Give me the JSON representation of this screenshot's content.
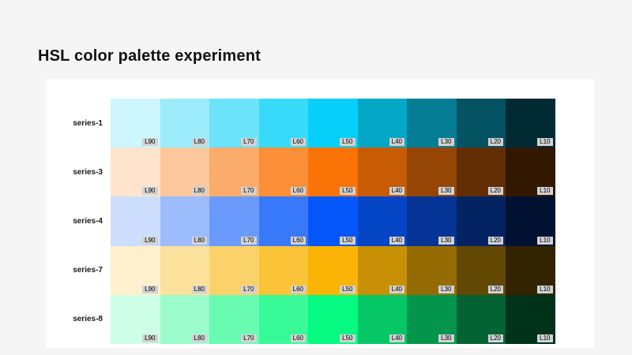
{
  "page": {
    "title": "HSL color palette experiment",
    "background": "#f5f5f5",
    "panel_background": "#ffffff",
    "label_chip_background": "#d2d2d2",
    "label_chip_text_color": "#000000"
  },
  "chart_data": {
    "type": "heatmap",
    "title": "HSL color palette experiment",
    "description": "Grid of color swatches: 5 hue series (rows) by 9 lightness steps (columns), each swatch tagged with its lightness label",
    "columns": [
      "L90",
      "L80",
      "L70",
      "L60",
      "L50",
      "L40",
      "L30",
      "L20",
      "L10"
    ],
    "lightness_percent": [
      90,
      80,
      70,
      60,
      50,
      40,
      30,
      20,
      10
    ],
    "saturation_percent": 95,
    "legend_position": "none",
    "grid": "off",
    "series": [
      {
        "name": "series-1",
        "hue": 190,
        "colors": [
          "#cdf6fe",
          "#9cecfc",
          "#6ae3fb",
          "#38dafa",
          "#06d0f9",
          "#05a7c7",
          "#047d95",
          "#035363",
          "#012a32"
        ]
      },
      {
        "name": "series-3",
        "hue": 27,
        "colors": [
          "#fee3cd",
          "#fcc79c",
          "#fbab6a",
          "#fa8f38",
          "#f97306",
          "#c75c05",
          "#954504",
          "#632e03",
          "#321701"
        ]
      },
      {
        "name": "series-4",
        "hue": 220,
        "colors": [
          "#cdddfe",
          "#9cbcfc",
          "#6a9afb",
          "#3879fa",
          "#0657f9",
          "#0546c7",
          "#043495",
          "#032363",
          "#011132"
        ]
      },
      {
        "name": "series-7",
        "hue": 43,
        "colors": [
          "#fef0cd",
          "#fce19c",
          "#fbd26a",
          "#fac338",
          "#f9b406",
          "#c79005",
          "#956c04",
          "#634803",
          "#322401"
        ]
      },
      {
        "name": "series-8",
        "hue": 150,
        "colors": [
          "#cdfee6",
          "#9cfccc",
          "#6afbb3",
          "#38fa99",
          "#06f980",
          "#05c766",
          "#04954d",
          "#036333",
          "#01321a"
        ]
      }
    ]
  }
}
